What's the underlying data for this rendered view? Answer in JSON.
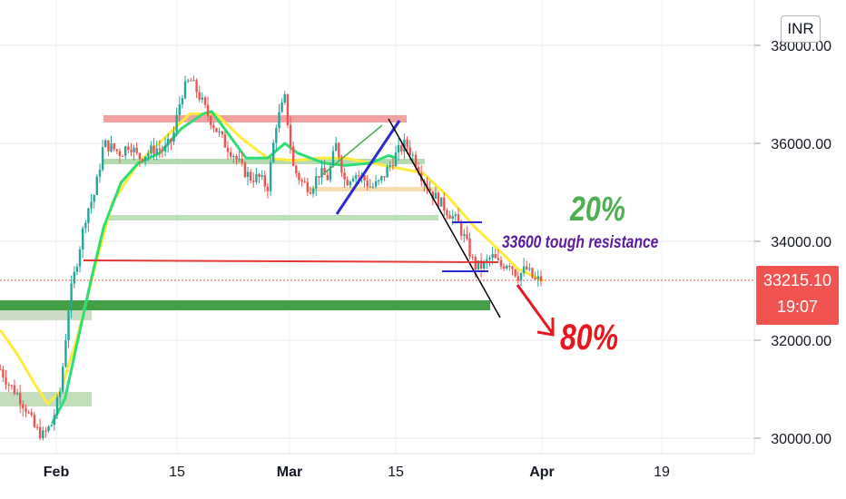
{
  "chart_data": {
    "type": "candlestick",
    "currency": "INR",
    "last_price": "33215.10",
    "countdown": "19:07",
    "y_ticks": [
      "38000.00",
      "36000.00",
      "34000.00",
      "32000.00",
      "30000.00"
    ],
    "ylim": [
      29900,
      38900
    ],
    "x_ticks": [
      {
        "label": "Feb",
        "day": 0,
        "month": true
      },
      {
        "label": "15",
        "day": 14,
        "month": false
      },
      {
        "label": "Mar",
        "day": 28,
        "month": true
      },
      {
        "label": "15",
        "day": 42,
        "month": false
      },
      {
        "label": "Apr",
        "day": 59,
        "month": true
      },
      {
        "label": "19",
        "day": 73,
        "month": false
      }
    ],
    "xlim": [
      -6.5,
      84
    ],
    "price_path": [
      [
        -6.5,
        31400
      ],
      [
        -5.5,
        31100
      ],
      [
        -4.5,
        30900
      ],
      [
        -3.5,
        30600
      ],
      [
        -2.5,
        30200
      ],
      [
        -1.5,
        30050
      ],
      [
        -0.5,
        30300
      ],
      [
        0.5,
        31000
      ],
      [
        1.5,
        32800
      ],
      [
        2.5,
        33700
      ],
      [
        3.5,
        34600
      ],
      [
        4.5,
        35000
      ],
      [
        5.5,
        36000
      ],
      [
        6.5,
        35900
      ],
      [
        7.5,
        35800
      ],
      [
        8.5,
        36000
      ],
      [
        9.5,
        35700
      ],
      [
        10.5,
        35800
      ],
      [
        11.5,
        35900
      ],
      [
        12.5,
        35850
      ],
      [
        13.5,
        36100
      ],
      [
        14.5,
        37000
      ],
      [
        15.5,
        37300
      ],
      [
        16.5,
        37000
      ],
      [
        17.5,
        36600
      ],
      [
        18.5,
        36300
      ],
      [
        19.5,
        36000
      ],
      [
        20.5,
        35800
      ],
      [
        21.5,
        35500
      ],
      [
        22.5,
        35300
      ],
      [
        23.5,
        35300
      ],
      [
        24.5,
        35100
      ],
      [
        25.5,
        36400
      ],
      [
        26.5,
        36900
      ],
      [
        27.5,
        35500
      ],
      [
        28.5,
        35200
      ],
      [
        29.5,
        35100
      ],
      [
        30.5,
        35400
      ],
      [
        31.5,
        35300
      ],
      [
        32.5,
        36000
      ],
      [
        33.5,
        35200
      ],
      [
        34.5,
        35400
      ],
      [
        35.5,
        35300
      ],
      [
        36.5,
        35100
      ],
      [
        37.5,
        35200
      ],
      [
        38.5,
        35500
      ],
      [
        39.5,
        35800
      ],
      [
        40.5,
        36000
      ],
      [
        41.5,
        35700
      ],
      [
        42.5,
        35300
      ],
      [
        43.5,
        35000
      ],
      [
        44.5,
        34800
      ],
      [
        45.5,
        34600
      ],
      [
        46.5,
        34400
      ],
      [
        47.5,
        34000
      ],
      [
        48.5,
        33500
      ],
      [
        49.5,
        33500
      ],
      [
        50.5,
        33700
      ],
      [
        51.5,
        33500
      ],
      [
        52.5,
        33600
      ],
      [
        53.5,
        33300
      ],
      [
        54.5,
        33450
      ],
      [
        55.5,
        33200
      ],
      [
        56.5,
        33250
      ]
    ],
    "moving_averages": [
      {
        "color": "#ffeb3b",
        "points": [
          [
            -6.5,
            32200
          ],
          [
            -4.5,
            31700
          ],
          [
            -2.5,
            31100
          ],
          [
            -1.0,
            30700
          ],
          [
            0.5,
            30950
          ],
          [
            2.5,
            32100
          ],
          [
            4.5,
            33500
          ],
          [
            6.5,
            34800
          ],
          [
            9.5,
            35600
          ],
          [
            12.5,
            36100
          ],
          [
            15.5,
            36600
          ],
          [
            18.5,
            36600
          ],
          [
            21.5,
            36100
          ],
          [
            24.5,
            35700
          ],
          [
            27.5,
            35650
          ],
          [
            30.5,
            35700
          ],
          [
            33.5,
            35700
          ],
          [
            36.5,
            35600
          ],
          [
            39.5,
            35500
          ],
          [
            42.5,
            35400
          ],
          [
            45.5,
            34900
          ],
          [
            48.5,
            34300
          ],
          [
            51.5,
            33800
          ],
          [
            53.5,
            33450
          ],
          [
            56.5,
            33200
          ]
        ]
      },
      {
        "color": "#2ede75",
        "points": [
          [
            -0.5,
            30300
          ],
          [
            1.0,
            30800
          ],
          [
            2.5,
            32000
          ],
          [
            4.0,
            33200
          ],
          [
            5.5,
            34300
          ],
          [
            7.5,
            35200
          ],
          [
            9.5,
            35600
          ],
          [
            12.0,
            35800
          ],
          [
            14.5,
            36300
          ],
          [
            17.0,
            36600
          ],
          [
            18.0,
            36650
          ],
          [
            19.5,
            36300
          ],
          [
            22.0,
            35700
          ],
          [
            24.5,
            35700
          ],
          [
            26.5,
            36000
          ],
          [
            28.0,
            35800
          ],
          [
            31.0,
            35600
          ],
          [
            33.5,
            35550
          ],
          [
            36.5,
            35600
          ],
          [
            38.5,
            35750
          ],
          [
            39.5,
            35700
          ]
        ]
      }
    ],
    "annotations": {
      "upside_pct": "20%",
      "resistance_note": "33600 tough resistance",
      "downside_pct": "80%"
    },
    "colors": {
      "up_candle": "#26a69a",
      "down_candle": "#ef5350",
      "price_line": "#ef5350"
    }
  }
}
